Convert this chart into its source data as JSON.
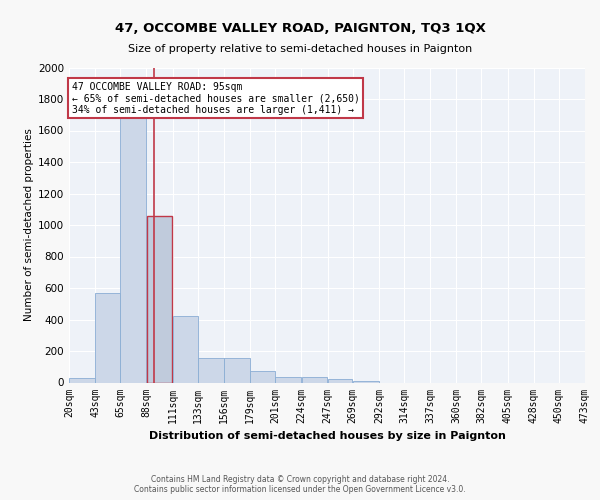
{
  "title": "47, OCCOMBE VALLEY ROAD, PAIGNTON, TQ3 1QX",
  "subtitle": "Size of property relative to semi-detached houses in Paignton",
  "xlabel": "Distribution of semi-detached houses by size in Paignton",
  "ylabel": "Number of semi-detached properties",
  "footer_line1": "Contains HM Land Registry data © Crown copyright and database right 2024.",
  "footer_line2": "Contains public sector information licensed under the Open Government Licence v3.0.",
  "annotation_title": "47 OCCOMBE VALLEY ROAD: 95sqm",
  "annotation_line1": "← 65% of semi-detached houses are smaller (2,650)",
  "annotation_line2": "34% of semi-detached houses are larger (1,411) →",
  "property_size": 95,
  "bin_edges": [
    20,
    43,
    65,
    88,
    111,
    133,
    156,
    179,
    201,
    224,
    247,
    269,
    292,
    314,
    337,
    360,
    382,
    405,
    428,
    450,
    473
  ],
  "bin_counts": [
    30,
    570,
    1680,
    1060,
    425,
    155,
    155,
    75,
    35,
    35,
    20,
    10,
    0,
    0,
    0,
    0,
    0,
    0,
    0,
    0
  ],
  "bar_color": "#ccd7e8",
  "bar_edge_color": "#8aadd4",
  "highlight_bar_color": "#c0cbdc",
  "highlight_bar_edge": "#c03848",
  "red_line_color": "#c03848",
  "annotation_box_edge": "#c03848",
  "background_color": "#eef2f8",
  "grid_color": "#ffffff",
  "fig_bg_color": "#f8f8f8",
  "ylim": [
    0,
    2000
  ],
  "yticks": [
    0,
    200,
    400,
    600,
    800,
    1000,
    1200,
    1400,
    1600,
    1800,
    2000
  ],
  "title_fontsize": 9.5,
  "subtitle_fontsize": 8,
  "ylabel_fontsize": 7.5,
  "xlabel_fontsize": 8,
  "tick_fontsize": 7,
  "annotation_fontsize": 7,
  "footer_fontsize": 5.5
}
